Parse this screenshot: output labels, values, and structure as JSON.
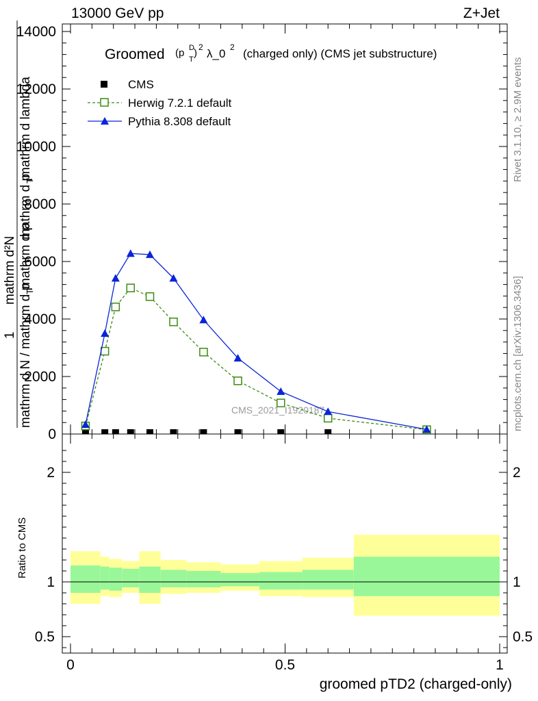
{
  "header": {
    "left": "13000 GeV pp",
    "right": "Z+Jet"
  },
  "title": {
    "prefix": "Groomed",
    "formula": "(p",
    "sup_d": "D",
    "sub_t": "T",
    "formula_end": ")",
    "sup_2": "2",
    "lambda": "λ_0",
    "sup_lambda": "2",
    "rest": "(charged only) (CMS jet substructure)"
  },
  "side_labels": {
    "rivet": "Rivet 3.1.10, ≥ 2.9M events",
    "mcplots": "mcplots.cern.ch [arXiv:1306.3436]"
  },
  "watermark": "CMS_2021_I1920187",
  "main_ylabel": {
    "numerator": "mathrm d²N",
    "fraction_one": "1",
    "denominator_top": "mathrm d p",
    "denominator_sub": "T",
    "denominator_rest": " mathrm d lambda",
    "long": "mathrm d N / mathrm d p",
    "long_sub": "T",
    "long_rest": " mathrm d p"
  },
  "ratio_ylabel": "Ratio to CMS",
  "xlabel": "groomed pTD2 (charged-only)",
  "chart_data": {
    "type": "line",
    "x_range": [
      0,
      1
    ],
    "y_range": [
      0,
      14000
    ],
    "ratio_range": [
      0.35,
      2.35
    ],
    "x_ticks": [
      "0",
      "0.5",
      "1"
    ],
    "x_tick_values": [
      0,
      0.5,
      1
    ],
    "y_ticks": [
      "0",
      "2000",
      "4000",
      "6000",
      "8000",
      "10000",
      "12000",
      "14000"
    ],
    "y_tick_values": [
      0,
      2000,
      4000,
      6000,
      8000,
      10000,
      12000,
      14000
    ],
    "ratio_ticks": [
      "0.5",
      "1",
      "2"
    ],
    "ratio_tick_values": [
      0.5,
      1,
      2
    ],
    "legend": [
      {
        "name": "CMS",
        "marker": "square-filled",
        "color": "#000000"
      },
      {
        "name": "Herwig 7.2.1 default",
        "marker": "square-open",
        "color": "#3a8a10",
        "dashed": true
      },
      {
        "name": "Pythia 8.308 default",
        "marker": "triangle",
        "color": "#0b24d8"
      }
    ],
    "series": [
      {
        "name": "CMS",
        "x": [
          0.035,
          0.08,
          0.105,
          0.14,
          0.185,
          0.24,
          0.31,
          0.39,
          0.49,
          0.6,
          0.83
        ],
        "values": [
          0,
          0,
          0,
          0,
          0,
          0,
          0,
          0,
          0,
          0,
          0
        ]
      },
      {
        "name": "Herwig 7.2.1 default",
        "x": [
          0.035,
          0.08,
          0.105,
          0.14,
          0.185,
          0.24,
          0.31,
          0.39,
          0.49,
          0.6,
          0.83
        ],
        "values": [
          280,
          2880,
          4420,
          5080,
          4780,
          3900,
          2850,
          1850,
          1080,
          550,
          150
        ]
      },
      {
        "name": "Pythia 8.308 default",
        "x": [
          0.035,
          0.08,
          0.105,
          0.14,
          0.185,
          0.24,
          0.31,
          0.39,
          0.49,
          0.6,
          0.83
        ],
        "values": [
          330,
          3500,
          5420,
          6280,
          6240,
          5420,
          3970,
          2640,
          1480,
          780,
          160
        ]
      }
    ],
    "ratio_bands": {
      "edges": [
        0.0,
        0.07,
        0.09,
        0.12,
        0.16,
        0.21,
        0.27,
        0.35,
        0.44,
        0.54,
        0.66,
        1.0
      ],
      "green_hi": [
        1.15,
        1.14,
        1.13,
        1.12,
        1.14,
        1.11,
        1.1,
        1.08,
        1.09,
        1.11,
        1.23
      ],
      "green_lo": [
        0.9,
        0.93,
        0.92,
        0.95,
        0.9,
        0.95,
        0.95,
        0.96,
        0.93,
        0.93,
        0.87
      ],
      "yellow_hi": [
        1.28,
        1.23,
        1.21,
        1.19,
        1.28,
        1.2,
        1.18,
        1.16,
        1.19,
        1.22,
        1.43
      ],
      "yellow_lo": [
        0.8,
        0.87,
        0.86,
        0.9,
        0.8,
        0.89,
        0.9,
        0.92,
        0.87,
        0.86,
        0.69
      ],
      "green_color": "#99f799",
      "yellow_color": "#ffff99"
    }
  }
}
